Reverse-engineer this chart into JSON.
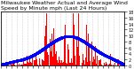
{
  "title": "Milwaukee Weather Actual and Average Wind Speed by Minute mph (Last 24 Hours)",
  "title_fontsize": 4.5,
  "bg_color": "#ffffff",
  "plot_bg_color": "#ffffff",
  "bar_color": "#ff0000",
  "line_color": "#0000ff",
  "line_style": "dotted",
  "line_width": 0.8,
  "marker": "o",
  "marker_size": 1.0,
  "ylim": [
    0,
    18
  ],
  "yticks": [
    0,
    2,
    4,
    6,
    8,
    10,
    12,
    14,
    16,
    18
  ],
  "ytick_fontsize": 3.5,
  "xtick_fontsize": 3.0,
  "n_points": 1440,
  "grid_color": "#aaaaaa",
  "grid_style": "dotted",
  "grid_linewidth": 0.4
}
